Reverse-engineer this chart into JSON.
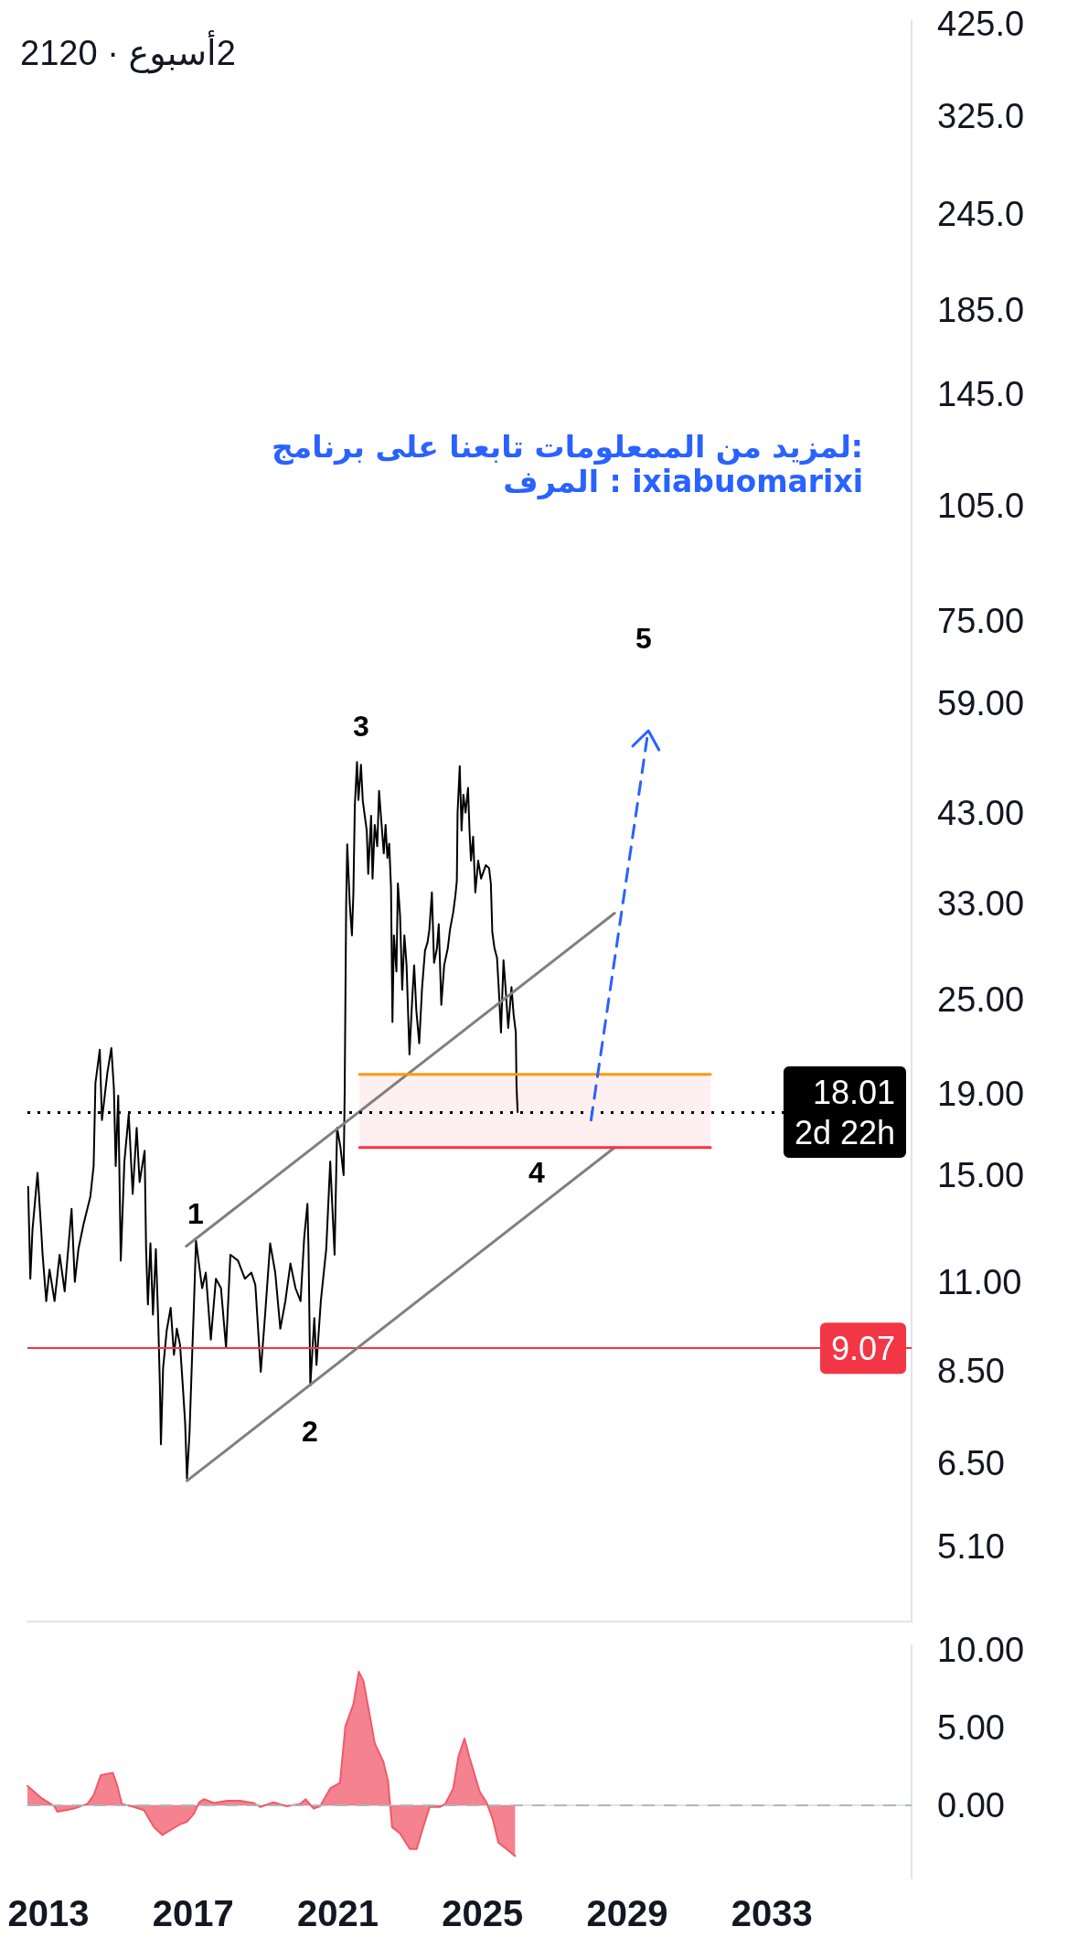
{
  "chart_data": [
    {
      "type": "line",
      "title": "2120 · 2أسبوع",
      "annotations": [
        "1",
        "2",
        "3",
        "4",
        "5",
        ":لمزيد من الممعلومات تابعنا على برنامج\nixiabuomarixi : المرف"
      ],
      "xlim": [
        2012.42,
        2036.86
      ],
      "ylim": [
        4.1,
        430
      ],
      "log": true,
      "tick_labels": "y",
      "yticks": [
        {
          "value": 425,
          "label": "425.0"
        },
        {
          "value": 325,
          "label": "325.0"
        },
        {
          "value": 245,
          "label": "245.0"
        },
        {
          "value": 185,
          "label": "185.0"
        },
        {
          "value": 145,
          "label": "145.0"
        },
        {
          "value": 105,
          "label": "105.0"
        },
        {
          "value": 75,
          "label": "75.00"
        },
        {
          "value": 59,
          "label": "59.00"
        },
        {
          "value": 43,
          "label": "43.00"
        },
        {
          "value": 33,
          "label": "33.00"
        },
        {
          "value": 25,
          "label": "25.00"
        },
        {
          "value": 19,
          "label": "19.00"
        },
        {
          "value": 15,
          "label": "15.00"
        },
        {
          "value": 11,
          "label": "11.00"
        },
        {
          "value": 8.5,
          "label": "8.50"
        },
        {
          "value": 6.5,
          "label": "6.50"
        },
        {
          "value": 5.1,
          "label": "5.10"
        }
      ],
      "ref_lines": [
        {
          "axis": "y",
          "value": 18.01,
          "label": "18.01\n2d 22h",
          "color": "#000000",
          "line_style": "dotted"
        },
        {
          "axis": "y",
          "value": 9.07,
          "label": "9.07",
          "color": "#f23645"
        }
      ],
      "series": [
        {
          "color": "#000000",
          "x": [
            2012.44,
            2012.5,
            2012.56,
            2012.7,
            2012.8,
            2012.84,
            2012.94,
            2013.03,
            2013.17,
            2013.31,
            2013.45,
            2013.64,
            2013.73,
            2013.83,
            2013.97,
            2014.16,
            2014.25,
            2014.3,
            2014.42,
            2014.48,
            2014.63,
            2014.74,
            2014.81,
            2014.86,
            2014.93,
            2015.0,
            2015.1,
            2015.22,
            2015.33,
            2015.44,
            2015.52,
            2015.66,
            2015.7,
            2015.75,
            2015.82,
            2015.89,
            2015.97,
            2016.03,
            2016.08,
            2016.11,
            2016.17,
            2016.27,
            2016.38,
            2016.47,
            2016.55,
            2016.64,
            2016.72,
            2016.78,
            2016.83,
            2016.9,
            2016.97,
            2017.02,
            2017.08,
            2017.16,
            2017.25,
            2017.35,
            2017.49,
            2017.63,
            2017.77,
            2017.91,
            2018.03,
            2018.24,
            2018.43,
            2018.61,
            2018.72,
            2018.87,
            2018.99,
            2019.13,
            2019.27,
            2019.41,
            2019.55,
            2019.69,
            2019.83,
            2019.97,
            2020.07,
            2020.16,
            2020.19,
            2020.24,
            2020.35,
            2020.41,
            2020.53,
            2020.68,
            2020.79,
            2020.91,
            2020.98,
            2021.07,
            2021.16,
            2021.19,
            2021.23,
            2021.26,
            2021.33,
            2021.39,
            2021.43,
            2021.47,
            2021.53,
            2021.57,
            2021.64,
            2021.69,
            2021.8,
            2021.84,
            2021.92,
            2021.96,
            2022.02,
            2022.09,
            2022.14,
            2022.21,
            2022.27,
            2022.32,
            2022.37,
            2022.42,
            2022.47,
            2022.51,
            2022.55,
            2022.62,
            2022.66,
            2022.72,
            2022.78,
            2022.84,
            2022.9,
            2022.98,
            2023.06,
            2023.11,
            2023.17,
            2023.25,
            2023.33,
            2023.41,
            2023.48,
            2023.53,
            2023.6,
            2023.66,
            2023.74,
            2023.79,
            2023.86,
            2023.94,
            2024.04,
            2024.1,
            2024.19,
            2024.25,
            2024.29,
            2024.31,
            2024.37,
            2024.42,
            2024.47,
            2024.53,
            2024.6,
            2024.64,
            2024.68,
            2024.74,
            2024.8,
            2024.88,
            2024.96,
            2025.09,
            2025.18,
            2025.23,
            2025.27,
            2025.33,
            2025.4,
            2025.45,
            2025.51,
            2025.58,
            2025.64,
            2025.71,
            2025.8,
            2025.86,
            2025.92,
            2025.94,
            2025.97
          ],
          "values": [
            14.5,
            11.1,
            12.8,
            15.1,
            12.8,
            11.9,
            10.4,
            11.4,
            10.4,
            11.9,
            10.7,
            13.6,
            11.0,
            12.1,
            13.0,
            14.1,
            15.4,
            19.6,
            21.6,
            17.6,
            20.2,
            21.7,
            19.3,
            15.4,
            18.9,
            11.7,
            15.6,
            17.9,
            14.2,
            17.2,
            14.7,
            16.1,
            12.1,
            10.3,
            12.3,
            10.0,
            12.1,
            10.0,
            8.2,
            6.86,
            8.56,
            9.55,
            10.2,
            8.9,
            9.6,
            9.15,
            8.06,
            7.29,
            6.21,
            7.08,
            8.81,
            10.2,
            12.4,
            11.6,
            10.8,
            11.3,
            9.3,
            11.1,
            10.8,
            9.08,
            11.9,
            11.7,
            11.1,
            11.3,
            10.9,
            8.47,
            10.0,
            12.3,
            11.3,
            9.6,
            10.4,
            11.6,
            10.8,
            10.4,
            12.5,
            13.8,
            12.1,
            8.14,
            9.9,
            8.64,
            10.4,
            12.1,
            15.6,
            11.9,
            17.2,
            16.3,
            15.0,
            19.2,
            32.8,
            39.2,
            33.0,
            30.1,
            34.0,
            43.9,
            49.8,
            44.6,
            49.4,
            44.5,
            40.8,
            36.0,
            42.6,
            35.5,
            41.5,
            39.0,
            45.8,
            41.5,
            38.2,
            41.5,
            37.7,
            39.3,
            34.6,
            23.4,
            30.1,
            27.1,
            35.0,
            31.9,
            25.7,
            30.1,
            27.6,
            21.3,
            25.2,
            27.6,
            24.2,
            22.0,
            25.9,
            28.8,
            29.5,
            30.6,
            34.1,
            27.8,
            29.0,
            31.1,
            24.6,
            27.6,
            29.0,
            30.6,
            32.2,
            33.8,
            35.3,
            43.0,
            49.2,
            40.8,
            45.3,
            43.0,
            46.2,
            40.8,
            37.4,
            40.1,
            34.1,
            37.4,
            35.5,
            36.9,
            36.6,
            35.0,
            30.4,
            29.0,
            28.2,
            25.7,
            22.7,
            28.0,
            25.7,
            23.0,
            25.9,
            23.9,
            22.7,
            19.4,
            18.01
          ]
        },
        {
          "color": "#808080",
          "x": [
            2016.81,
            2028.65
          ],
          "values": [
            12.2,
            32.1
          ]
        },
        {
          "color": "#808080",
          "x": [
            2016.83,
            2028.65
          ],
          "values": [
            6.17,
            16.25
          ]
        },
        {
          "color": "#ff9800",
          "x": [
            2021.6,
            2031.3
          ],
          "values": [
            20.1,
            20.1
          ]
        },
        {
          "color": "#f23645",
          "x": [
            2021.6,
            2031.3
          ],
          "values": [
            16.25,
            16.25
          ],
          "lower": [
            16.25,
            16.25
          ],
          "upper": [
            20.1,
            20.1
          ]
        },
        {
          "color": "#2962ff",
          "x": [
            2028.0,
            2029.58
          ],
          "values": [
            17.6,
            54.6
          ],
          "line_style": "dashed"
        }
      ]
    },
    {
      "type": "area",
      "color": "#f05a6a",
      "x": [
        2012.42,
        2012.79,
        2013.16,
        2013.25,
        2013.71,
        2014.08,
        2014.26,
        2014.45,
        2014.78,
        2014.9,
        2015.03,
        2015.36,
        2015.64,
        2015.92,
        2016.15,
        2016.65,
        2016.83,
        2017.02,
        2017.17,
        2017.3,
        2017.57,
        2017.94,
        2018.3,
        2018.67,
        2018.86,
        2019.22,
        2019.59,
        2019.96,
        2020.11,
        2020.33,
        2020.51,
        2020.79,
        2021.06,
        2021.21,
        2021.43,
        2021.58,
        2021.71,
        2021.89,
        2022.02,
        2022.26,
        2022.39,
        2022.5,
        2022.72,
        2022.99,
        2023.18,
        2023.36,
        2023.54,
        2023.82,
        2023.97,
        2024.19,
        2024.34,
        2024.5,
        2024.65,
        2024.92,
        2025.11,
        2025.29,
        2025.44,
        2025.66,
        2025.9
      ],
      "values": [
        1.25,
        0.5,
        -0.05,
        -0.4,
        -0.2,
        0.1,
        0.7,
        1.95,
        2.1,
        1.3,
        0.1,
        -0.1,
        -0.3,
        -1.4,
        -1.9,
        -1.2,
        -1.05,
        -0.55,
        0.2,
        0.4,
        0.15,
        0.3,
        0.3,
        0.15,
        -0.1,
        0.2,
        -0.05,
        0.1,
        0.4,
        -0.2,
        -0.05,
        1.1,
        1.45,
        5.1,
        6.5,
        8.6,
        8.0,
        5.7,
        4.0,
        2.8,
        1.55,
        -1.4,
        -1.8,
        -2.8,
        -2.8,
        -1.4,
        -0.1,
        -0.1,
        0.1,
        1.1,
        3.2,
        4.3,
        3.0,
        0.9,
        0.2,
        -0.95,
        -2.4,
        -2.8,
        -3.25
      ],
      "xlim": [
        2012.42,
        2036.86
      ],
      "xticks": [
        2013,
        2017,
        2021,
        2025,
        2029,
        2033
      ],
      "ylim": [
        -4.7,
        10.3
      ],
      "yticks": [
        {
          "value": 10,
          "label": "10.00"
        },
        {
          "value": 5,
          "label": "5.00"
        },
        {
          "value": 0,
          "label": "0.00"
        }
      ],
      "ref_lines": [
        {
          "axis": "y",
          "value": 0,
          "color": "#b2b5be",
          "line_style": "dashed"
        }
      ]
    }
  ]
}
